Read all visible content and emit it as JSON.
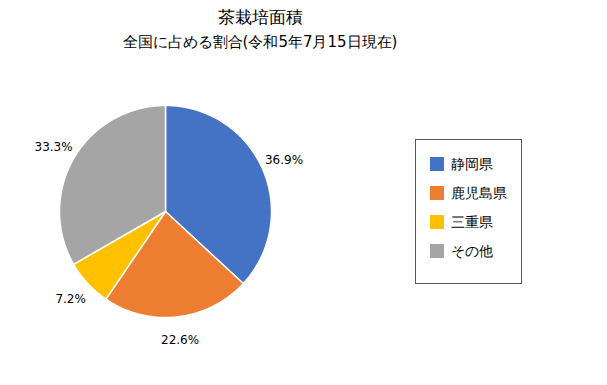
{
  "chart_data": {
    "type": "pie",
    "title": "茶栽培面積",
    "subtitle": "全国に占める割合(令和5年7月15日現在)",
    "categories": [
      "静岡県",
      "鹿児島県",
      "三重県",
      "その他"
    ],
    "values": [
      36.9,
      22.6,
      7.2,
      33.3
    ],
    "value_labels": [
      "36.9%",
      "22.6%",
      "7.2%",
      "33.3%"
    ],
    "colors": [
      "#4472C4",
      "#ED7D31",
      "#FFC000",
      "#A5A5A5"
    ],
    "data_labels": true,
    "legend": "right"
  }
}
